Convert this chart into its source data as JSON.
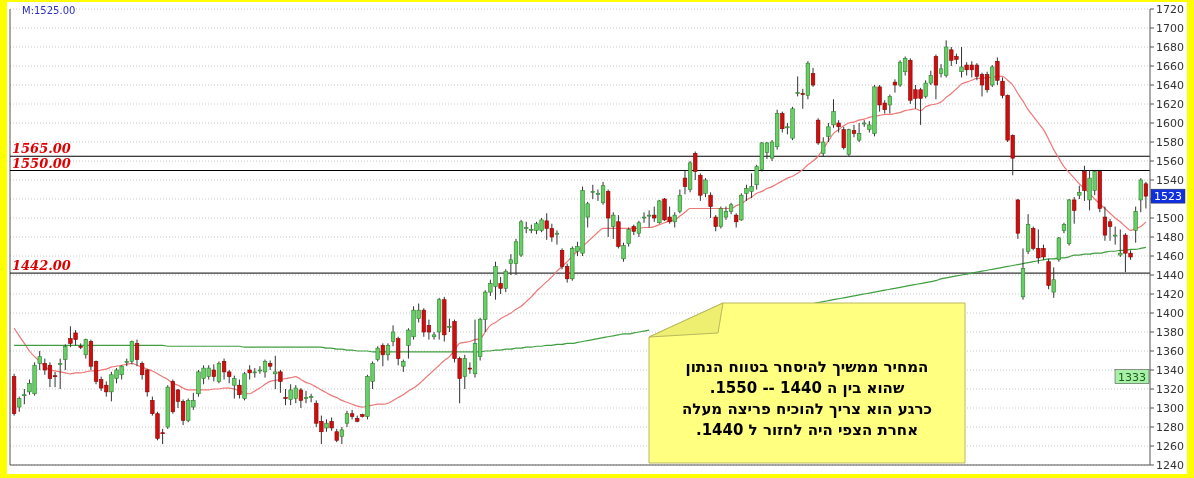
{
  "chart_data": {
    "type": "candlestick",
    "categories": [
      null,
      null,
      null,
      null,
      null,
      null,
      null,
      null,
      null,
      null,
      null,
      null,
      null,
      null,
      null,
      null,
      null,
      null,
      null,
      null,
      null,
      null,
      null,
      null,
      null,
      null,
      null,
      null,
      null,
      null,
      null,
      null,
      null,
      null,
      null,
      null,
      null,
      null,
      null,
      null,
      null,
      null,
      null,
      null,
      null,
      null,
      null,
      null,
      null,
      null,
      null,
      null,
      null,
      null,
      null,
      null,
      null,
      null,
      null,
      null,
      null,
      null,
      null,
      null,
      null,
      null,
      null,
      null,
      null,
      null,
      null,
      null,
      null,
      null,
      null,
      null,
      null,
      null,
      null,
      null,
      null,
      null,
      null,
      null,
      null,
      null,
      null,
      null,
      null,
      null,
      null,
      null,
      null,
      null,
      null,
      null,
      null,
      null,
      null,
      null,
      null,
      null,
      null,
      null,
      null,
      null,
      null,
      null,
      null,
      null,
      null,
      null,
      null,
      null,
      null,
      null,
      null,
      null,
      null,
      null,
      null,
      null,
      null,
      null,
      null,
      null,
      null,
      null,
      null,
      null,
      null,
      null,
      null,
      null,
      null,
      null,
      null,
      null,
      null,
      null,
      null,
      null,
      null,
      null,
      null,
      null,
      null,
      null,
      null,
      null,
      null,
      null,
      null,
      null,
      null,
      null,
      null,
      null,
      null,
      null,
      null,
      null,
      null,
      null,
      null,
      null,
      null,
      null,
      null,
      null,
      null,
      null,
      null,
      null,
      null,
      null,
      null,
      null,
      null,
      null,
      null,
      null,
      null,
      null,
      null,
      null,
      null,
      null,
      null,
      null,
      null,
      null,
      null,
      null,
      null,
      null,
      null,
      null,
      null,
      null,
      null,
      null,
      null,
      null,
      null,
      null,
      null,
      null,
      null,
      null,
      null,
      null,
      null,
      null,
      null,
      null,
      null,
      null,
      null,
      null,
      null,
      null
    ],
    "ohlc": [
      [
        1333,
        1336,
        1292,
        1294
      ],
      [
        1301,
        1312,
        1296,
        1310
      ],
      [
        1313,
        1320,
        1304,
        1314
      ],
      [
        1317,
        1330,
        1314,
        1326
      ],
      [
        1315,
        1348,
        1313,
        1345
      ],
      [
        1347,
        1360,
        1340,
        1354
      ],
      [
        1347,
        1352,
        1335,
        1340
      ],
      [
        1345,
        1348,
        1322,
        1331
      ],
      [
        1334,
        1338,
        1322,
        1333
      ],
      [
        1346,
        1352,
        1320,
        1347
      ],
      [
        1351,
        1367,
        1340,
        1365
      ],
      [
        1373,
        1386,
        1364,
        1368
      ],
      [
        1379,
        1382,
        1366,
        1372
      ],
      [
        1365,
        1368,
        1362,
        1364
      ],
      [
        1356,
        1373,
        1352,
        1372
      ],
      [
        1370,
        1372,
        1340,
        1344
      ],
      [
        1349,
        1350,
        1325,
        1328
      ],
      [
        1330,
        1333,
        1318,
        1321
      ],
      [
        1324,
        1328,
        1312,
        1317
      ],
      [
        1317,
        1338,
        1307,
        1335
      ],
      [
        1331,
        1342,
        1326,
        1340
      ],
      [
        1335,
        1345,
        1330,
        1344
      ],
      [
        1348,
        1352,
        1344,
        1349
      ],
      [
        1349,
        1371,
        1346,
        1370
      ],
      [
        1368,
        1372,
        1344,
        1351
      ],
      [
        1347,
        1349,
        1330,
        1335
      ],
      [
        1340,
        1341,
        1312,
        1317
      ],
      [
        1308,
        1312,
        1292,
        1294
      ],
      [
        1294,
        1296,
        1266,
        1268
      ],
      [
        1274,
        1278,
        1262,
        1273
      ],
      [
        1280,
        1324,
        1278,
        1322
      ],
      [
        1328,
        1330,
        1294,
        1296
      ],
      [
        1319,
        1320,
        1300,
        1307
      ],
      [
        1307,
        1309,
        1282,
        1287
      ],
      [
        1287,
        1310,
        1285,
        1308
      ],
      [
        1301,
        1316,
        1298,
        1308
      ],
      [
        1315,
        1340,
        1312,
        1338
      ],
      [
        1331,
        1345,
        1325,
        1342
      ],
      [
        1333,
        1345,
        1330,
        1342
      ],
      [
        1340,
        1346,
        1328,
        1333
      ],
      [
        1328,
        1349,
        1326,
        1347
      ],
      [
        1349,
        1352,
        1330,
        1338
      ],
      [
        1338,
        1340,
        1326,
        1333
      ],
      [
        1324,
        1334,
        1310,
        1331
      ],
      [
        1324,
        1330,
        1310,
        1314
      ],
      [
        1310,
        1338,
        1308,
        1336
      ],
      [
        1340,
        1345,
        1330,
        1337
      ],
      [
        1337,
        1342,
        1332,
        1338
      ],
      [
        1340,
        1344,
        1336,
        1340
      ],
      [
        1338,
        1351,
        1332,
        1349
      ],
      [
        1347,
        1350,
        1340,
        1344
      ],
      [
        1336,
        1355,
        1320,
        1338
      ],
      [
        1338,
        1340,
        1316,
        1328
      ],
      [
        1311,
        1320,
        1303,
        1310
      ],
      [
        1309,
        1325,
        1303,
        1319
      ],
      [
        1310,
        1324,
        1305,
        1321
      ],
      [
        1319,
        1321,
        1300,
        1308
      ],
      [
        1310,
        1318,
        1305,
        1311
      ],
      [
        1311,
        1315,
        1306,
        1312
      ],
      [
        1305,
        1308,
        1280,
        1284
      ],
      [
        1286,
        1292,
        1262,
        1275
      ],
      [
        1279,
        1288,
        1275,
        1284
      ],
      [
        1286,
        1290,
        1276,
        1279
      ],
      [
        1275,
        1278,
        1264,
        1266
      ],
      [
        1270,
        1280,
        1262,
        1277
      ],
      [
        1284,
        1297,
        1280,
        1294
      ],
      [
        1294,
        1298,
        1288,
        1291
      ],
      [
        1289,
        1292,
        1285,
        1286
      ],
      [
        1293,
        1294,
        1290,
        1291
      ],
      [
        1291,
        1335,
        1288,
        1333
      ],
      [
        1328,
        1349,
        1320,
        1347
      ],
      [
        1351,
        1365,
        1349,
        1363
      ],
      [
        1366,
        1368,
        1344,
        1356
      ],
      [
        1356,
        1368,
        1350,
        1366
      ],
      [
        1370,
        1387,
        1365,
        1380
      ],
      [
        1373,
        1375,
        1345,
        1352
      ],
      [
        1344,
        1351,
        1338,
        1349
      ],
      [
        1366,
        1384,
        1352,
        1382
      ],
      [
        1375,
        1407,
        1372,
        1403
      ],
      [
        1394,
        1410,
        1390,
        1403
      ],
      [
        1403,
        1405,
        1375,
        1380
      ],
      [
        1387,
        1393,
        1372,
        1380
      ],
      [
        1375,
        1380,
        1372,
        1377
      ],
      [
        1380,
        1416,
        1372,
        1414
      ],
      [
        1414,
        1417,
        1370,
        1377
      ],
      [
        1385,
        1394,
        1380,
        1386
      ],
      [
        1391,
        1393,
        1348,
        1352
      ],
      [
        1352,
        1354,
        1305,
        1331
      ],
      [
        1333,
        1356,
        1320,
        1352
      ],
      [
        1342,
        1348,
        1336,
        1341
      ],
      [
        1336,
        1393,
        1332,
        1368
      ],
      [
        1354,
        1395,
        1350,
        1393
      ],
      [
        1393,
        1424,
        1380,
        1422
      ],
      [
        1422,
        1435,
        1418,
        1431
      ],
      [
        1428,
        1454,
        1414,
        1449
      ],
      [
        1431,
        1438,
        1420,
        1426
      ],
      [
        1426,
        1446,
        1422,
        1444
      ],
      [
        1452,
        1462,
        1440,
        1456
      ],
      [
        1452,
        1478,
        1440,
        1475
      ],
      [
        1461,
        1498,
        1459,
        1496
      ],
      [
        1489,
        1496,
        1484,
        1490
      ],
      [
        1487,
        1493,
        1484,
        1488
      ],
      [
        1487,
        1496,
        1483,
        1494
      ],
      [
        1487,
        1500,
        1485,
        1498
      ],
      [
        1497,
        1505,
        1477,
        1489
      ],
      [
        1489,
        1494,
        1475,
        1480
      ],
      [
        1483,
        1487,
        1472,
        1484
      ],
      [
        1466,
        1468,
        1446,
        1449
      ],
      [
        1449,
        1452,
        1432,
        1436
      ],
      [
        1436,
        1470,
        1434,
        1468
      ],
      [
        1465,
        1475,
        1460,
        1470
      ],
      [
        1463,
        1533,
        1460,
        1529
      ],
      [
        1501,
        1517,
        1490,
        1515
      ],
      [
        1527,
        1535,
        1520,
        1528
      ],
      [
        1526,
        1530,
        1518,
        1526
      ],
      [
        1516,
        1538,
        1514,
        1534
      ],
      [
        1528,
        1530,
        1480,
        1500
      ],
      [
        1491,
        1506,
        1478,
        1503
      ],
      [
        1496,
        1503,
        1468,
        1470
      ],
      [
        1457,
        1474,
        1454,
        1471
      ],
      [
        1473,
        1490,
        1470,
        1488
      ],
      [
        1491,
        1493,
        1482,
        1486
      ],
      [
        1484,
        1497,
        1480,
        1495
      ],
      [
        1500,
        1506,
        1495,
        1501
      ],
      [
        1503,
        1508,
        1490,
        1503
      ],
      [
        1503,
        1512,
        1496,
        1500
      ],
      [
        1495,
        1519,
        1494,
        1518
      ],
      [
        1520,
        1521,
        1497,
        1498
      ],
      [
        1501,
        1512,
        1494,
        1496
      ],
      [
        1496,
        1506,
        1490,
        1503
      ],
      [
        1507,
        1530,
        1505,
        1524
      ],
      [
        1542,
        1550,
        1525,
        1533
      ],
      [
        1530,
        1560,
        1527,
        1558
      ],
      [
        1568,
        1570,
        1540,
        1549
      ],
      [
        1545,
        1547,
        1518,
        1524
      ],
      [
        1526,
        1542,
        1522,
        1540
      ],
      [
        1524,
        1527,
        1500,
        1512
      ],
      [
        1501,
        1503,
        1486,
        1491
      ],
      [
        1491,
        1512,
        1489,
        1510
      ],
      [
        1501,
        1512,
        1498,
        1507
      ],
      [
        1507,
        1516,
        1504,
        1514
      ],
      [
        1503,
        1505,
        1490,
        1496
      ],
      [
        1498,
        1526,
        1497,
        1524
      ],
      [
        1526,
        1535,
        1518,
        1531
      ],
      [
        1528,
        1547,
        1521,
        1533
      ],
      [
        1535,
        1556,
        1530,
        1554
      ],
      [
        1551,
        1580,
        1549,
        1579
      ],
      [
        1569,
        1580,
        1562,
        1579
      ],
      [
        1563,
        1582,
        1560,
        1580
      ],
      [
        1575,
        1614,
        1572,
        1610
      ],
      [
        1610,
        1612,
        1590,
        1594
      ],
      [
        1596,
        1600,
        1588,
        1596
      ],
      [
        1584,
        1617,
        1582,
        1615
      ],
      [
        1631,
        1649,
        1628,
        1632
      ],
      [
        1631,
        1636,
        1615,
        1630
      ],
      [
        1629,
        1665,
        1625,
        1663
      ],
      [
        1652,
        1658,
        1638,
        1640
      ],
      [
        1603,
        1605,
        1577,
        1579
      ],
      [
        1568,
        1585,
        1565,
        1580
      ],
      [
        1586,
        1600,
        1580,
        1596
      ],
      [
        1598,
        1625,
        1595,
        1612
      ],
      [
        1600,
        1603,
        1590,
        1596
      ],
      [
        1593,
        1596,
        1572,
        1574
      ],
      [
        1567,
        1594,
        1565,
        1593
      ],
      [
        1592,
        1598,
        1585,
        1589
      ],
      [
        1582,
        1600,
        1580,
        1589
      ],
      [
        1599,
        1603,
        1596,
        1600
      ],
      [
        1593,
        1602,
        1590,
        1598
      ],
      [
        1589,
        1640,
        1586,
        1638
      ],
      [
        1638,
        1640,
        1612,
        1619
      ],
      [
        1621,
        1624,
        1610,
        1614
      ],
      [
        1619,
        1630,
        1610,
        1628
      ],
      [
        1643,
        1646,
        1632,
        1640
      ],
      [
        1640,
        1666,
        1638,
        1664
      ],
      [
        1654,
        1670,
        1650,
        1668
      ],
      [
        1666,
        1668,
        1620,
        1624
      ],
      [
        1635,
        1640,
        1615,
        1626
      ],
      [
        1635,
        1637,
        1598,
        1626
      ],
      [
        1628,
        1645,
        1626,
        1642
      ],
      [
        1642,
        1655,
        1640,
        1650
      ],
      [
        1670,
        1672,
        1625,
        1640
      ],
      [
        1652,
        1662,
        1648,
        1657
      ],
      [
        1650,
        1687,
        1648,
        1680
      ],
      [
        1677,
        1680,
        1660,
        1666
      ],
      [
        1670,
        1673,
        1662,
        1667
      ],
      [
        1654,
        1680,
        1648,
        1659
      ],
      [
        1661,
        1664,
        1650,
        1656
      ],
      [
        1661,
        1665,
        1648,
        1656
      ],
      [
        1661,
        1663,
        1645,
        1649
      ],
      [
        1651,
        1653,
        1628,
        1640
      ],
      [
        1651,
        1654,
        1632,
        1635
      ],
      [
        1640,
        1661,
        1638,
        1659
      ],
      [
        1665,
        1669,
        1640,
        1645
      ],
      [
        1644,
        1648,
        1626,
        1629
      ],
      [
        1629,
        1630,
        1580,
        1582
      ],
      [
        1587,
        1588,
        1545,
        1563
      ],
      [
        1519,
        1520,
        1478,
        1484
      ],
      [
        1417,
        1468,
        1414,
        1447
      ],
      [
        1465,
        1504,
        1462,
        1493
      ],
      [
        1489,
        1491,
        1466,
        1468
      ],
      [
        1468,
        1488,
        1452,
        1458
      ],
      [
        1468,
        1472,
        1456,
        1459
      ],
      [
        1454,
        1457,
        1425,
        1429
      ],
      [
        1422,
        1448,
        1416,
        1435
      ],
      [
        1456,
        1480,
        1454,
        1479
      ],
      [
        1487,
        1495,
        1484,
        1493
      ],
      [
        1473,
        1520,
        1471,
        1519
      ],
      [
        1519,
        1522,
        1494,
        1508
      ],
      [
        1524,
        1534,
        1520,
        1527
      ],
      [
        1549,
        1555,
        1518,
        1529
      ],
      [
        1519,
        1550,
        1508,
        1542
      ],
      [
        1529,
        1550,
        1524,
        1549
      ],
      [
        1549,
        1550,
        1506,
        1510
      ],
      [
        1501,
        1512,
        1476,
        1482
      ],
      [
        1496,
        1499,
        1476,
        1491
      ],
      [
        1482,
        1491,
        1472,
        1482
      ],
      [
        1461,
        1488,
        1459,
        1463
      ],
      [
        1482,
        1484,
        1443,
        1463
      ],
      [
        1463,
        1466,
        1456,
        1459
      ],
      [
        1487,
        1512,
        1474,
        1507
      ],
      [
        1519,
        1542,
        1506,
        1540
      ],
      [
        1536,
        1538,
        1510,
        1523
      ]
    ],
    "series": [
      {
        "type": "line",
        "color": "#ee7777",
        "values": [
          1384,
          1376,
          1368,
          1360,
          1354,
          1349,
          1344,
          1340,
          1339,
          1338,
          1337,
          1336,
          1337,
          1337,
          1338,
          1339,
          1339,
          1340,
          1341,
          1343,
          1344,
          1345,
          1346,
          1347,
          1345,
          1343,
          1341,
          1339,
          1336,
          1333,
          1330,
          1326,
          1324,
          1321,
          1319,
          1319,
          1319,
          1319,
          1319,
          1320,
          1320,
          1321,
          1321,
          1320,
          1318,
          1316,
          1315,
          1318,
          1321,
          1325,
          1328,
          1329,
          1330,
          1331,
          1332,
          1333,
          1330,
          1327,
          1325,
          1322,
          1319,
          1316,
          1313,
          1311,
          1308,
          1306,
          1304,
          1302,
          1301,
          1302,
          1303,
          1304,
          1304,
          1305,
          1308,
          1311,
          1314,
          1318,
          1321,
          1325,
          1330,
          1335,
          1340,
          1345,
          1350,
          1354,
          1361,
          1368,
          1369,
          1370,
          1372,
          1373,
          1380,
          1387,
          1390,
          1394,
          1397,
          1400,
          1404,
          1407,
          1412,
          1417,
          1423,
          1428,
          1433,
          1438,
          1444,
          1449,
          1454,
          1460,
          1465,
          1470,
          1475,
          1480,
          1485,
          1489,
          1489,
          1489,
          1489,
          1489,
          1489,
          1489,
          1489,
          1490,
          1490,
          1491,
          1493,
          1495,
          1497,
          1498,
          1502,
          1506,
          1510,
          1510,
          1510,
          1510,
          1510,
          1510,
          1510,
          1510,
          1510,
          1513,
          1515,
          1519,
          1522,
          1526,
          1528,
          1531,
          1533,
          1536,
          1539,
          1542,
          1544,
          1547,
          1551,
          1556,
          1560,
          1565,
          1573,
          1581,
          1589,
          1593,
          1597,
          1600,
          1601,
          1603,
          1604,
          1606,
          1607,
          1608,
          1609,
          1609,
          1610,
          1611,
          1613,
          1614,
          1615,
          1613,
          1617,
          1619,
          1620,
          1622,
          1627,
          1631,
          1636,
          1641,
          1643,
          1645,
          1647,
          1647,
          1648,
          1648,
          1649,
          1649,
          1645,
          1640,
          1631,
          1623,
          1614,
          1607,
          1600,
          1593,
          1583,
          1572,
          1563,
          1554,
          1548,
          1542,
          1536,
          1531,
          1526,
          1520,
          1515,
          1510,
          1505,
          1500,
          1496,
          1491,
          1487,
          1489,
          1491,
          1496
        ]
      },
      {
        "type": "line",
        "color": "#3f9e3f",
        "values": [
          1366,
          1366,
          1366,
          1366,
          1366,
          1366,
          1366,
          1366,
          1366,
          1366,
          1366,
          1366,
          1366,
          1366,
          1366,
          1366,
          1366,
          1366,
          1366,
          1366,
          1366,
          1366,
          1366,
          1366,
          1366,
          1366,
          1366,
          1366,
          1366,
          1366,
          1365,
          1365,
          1365,
          1365,
          1365,
          1365,
          1365,
          1365,
          1365,
          1365,
          1365,
          1365,
          1365,
          1365,
          1365,
          1364,
          1364,
          1364,
          1364,
          1364,
          1364,
          1364,
          1364,
          1364,
          1364,
          1364,
          1364,
          1364,
          1364,
          1364,
          1364,
          1363,
          1363,
          1362,
          1362,
          1361,
          1361,
          1360,
          1360,
          1360,
          1359,
          1359,
          1359,
          1359,
          1359,
          1359,
          1359,
          1359,
          1359,
          1359,
          1359,
          1359,
          1359,
          1359,
          1359,
          1359,
          1359,
          1359,
          1359,
          1359,
          1359,
          1359,
          1360,
          1360,
          1361,
          1361,
          1362,
          1362,
          1363,
          1363,
          1364,
          1364,
          1365,
          1365,
          1366,
          1366,
          1367,
          1367,
          1368,
          1368,
          1369,
          1370,
          1371,
          1372,
          1373,
          1374,
          1375,
          1376,
          1377,
          1378,
          1378,
          1379,
          1380,
          1381,
          1382,
          null,
          null,
          null,
          null,
          null,
          null,
          null,
          null,
          null,
          null,
          null,
          null,
          null,
          null,
          null,
          null,
          null,
          null,
          null,
          null,
          null,
          null,
          null,
          null,
          null,
          null,
          null,
          null,
          null,
          null,
          null,
          1410,
          1411,
          1412,
          1413,
          1414,
          1415,
          1416,
          1417,
          1418,
          1419,
          1420,
          1421,
          1422,
          1423,
          1424,
          1425,
          1426,
          1427,
          1428,
          1429,
          1430,
          1431,
          1432,
          1433,
          1434,
          1436,
          1437,
          1438,
          1439,
          1440,
          1441,
          1442,
          1443,
          1444,
          1445,
          1446,
          1447,
          1448,
          1449,
          1450,
          1451,
          1452,
          1453,
          1454,
          1455,
          1456,
          1457,
          1457,
          1458,
          1458,
          1459,
          1461,
          1461,
          1462,
          1462,
          1463,
          1463,
          1464,
          1465,
          1465,
          1466,
          1466,
          1467,
          1467,
          1468,
          1469
        ]
      }
    ],
    "ylim": [
      1240,
      1720
    ],
    "yticks": [
      1240,
      1260,
      1280,
      1300,
      1320,
      1340,
      1360,
      1380,
      1400,
      1420,
      1440,
      1460,
      1480,
      1500,
      {
        "value": 1520,
        "label": null
      },
      1540,
      1560,
      1580,
      1600,
      1620,
      1640,
      1660,
      1680,
      1700,
      1720
    ],
    "grid": "y",
    "ref_lines": [
      {
        "axis": "y",
        "value": 1565,
        "label": "1565.00",
        "color": "#000000"
      },
      {
        "axis": "y",
        "value": 1550,
        "label": "1550.00",
        "color": "#000000"
      },
      {
        "axis": "y",
        "value": 1442,
        "label": "1442.00",
        "color": "#000000"
      }
    ],
    "annotations": [
      "המחיר  ממשיך  להיסחר   בטווח הנתון\nשהוא  בין  ה  1440  --  1550.\nכרגע  הוא   צריך להוכיח  פריצה  מעלה\nאחרת   הצפי  היה   לחזור  ל 1440.",
      "M:1525.00",
      {
        "text": "1523",
        "y": 1523
      },
      {
        "text": "1333",
        "y": 1333
      }
    ]
  }
}
